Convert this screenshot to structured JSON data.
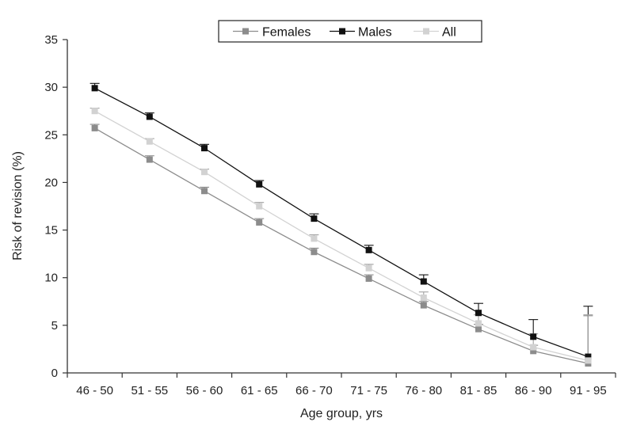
{
  "chart_data": {
    "type": "line",
    "title": "",
    "xlabel": "Age group, yrs",
    "ylabel": "Risk of revision (%)",
    "ylim": [
      0,
      35
    ],
    "yticks": [
      0,
      5,
      10,
      15,
      20,
      25,
      30,
      35
    ],
    "categories": [
      "46 - 50",
      "51 - 55",
      "56 - 60",
      "61 - 65",
      "66 - 70",
      "71 - 75",
      "76 - 80",
      "81 - 85",
      "86 - 90",
      "91 - 95"
    ],
    "legend_position": "top-center",
    "grid": false,
    "series": [
      {
        "name": "Females",
        "color": "#8c8c8c",
        "marker": "square",
        "values": [
          25.7,
          22.4,
          19.1,
          15.8,
          12.7,
          9.9,
          7.1,
          4.6,
          2.3,
          1.0
        ],
        "error_upper": [
          0.4,
          0.4,
          0.4,
          0.4,
          0.4,
          0.4,
          0.4,
          0.5,
          0.6,
          5.0
        ]
      },
      {
        "name": "Males",
        "color": "#111111",
        "marker": "square",
        "values": [
          29.9,
          26.9,
          23.6,
          19.8,
          16.2,
          12.9,
          9.6,
          6.3,
          3.8,
          1.7
        ],
        "error_upper": [
          0.5,
          0.4,
          0.4,
          0.4,
          0.5,
          0.5,
          0.7,
          1.0,
          1.8,
          5.3
        ]
      },
      {
        "name": "All",
        "color": "#d2d2d2",
        "marker": "square",
        "values": [
          27.5,
          24.3,
          21.1,
          17.5,
          14.1,
          11.0,
          7.9,
          5.2,
          2.7,
          1.3
        ],
        "error_upper": [
          0.3,
          0.3,
          0.3,
          0.4,
          0.4,
          0.4,
          0.6,
          0.9,
          1.4,
          4.8
        ]
      }
    ]
  }
}
